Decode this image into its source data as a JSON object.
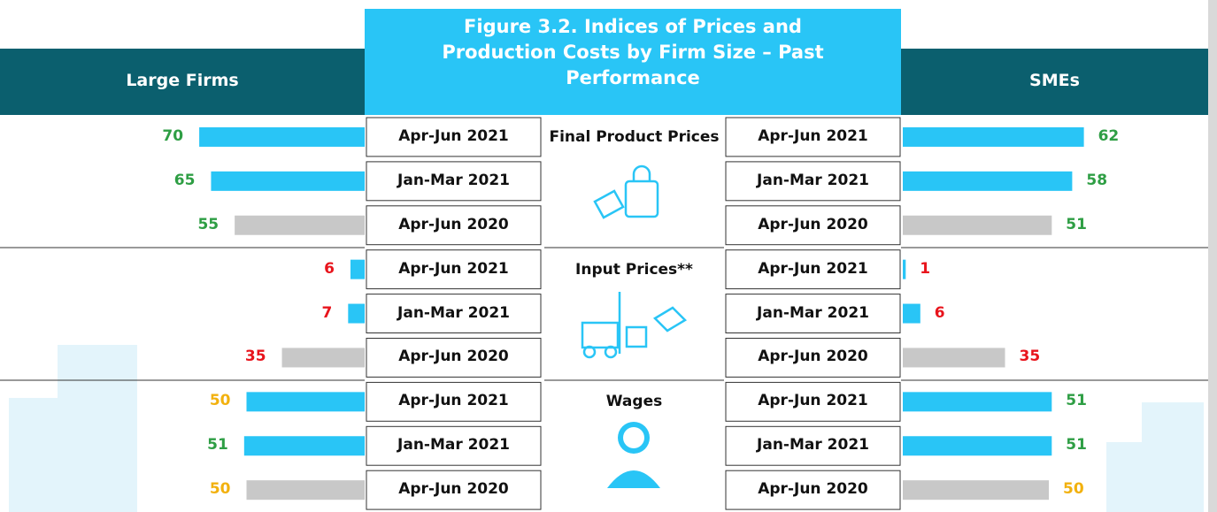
{
  "title": "Figure 3.2. Indices of Prices and Production Costs by Firm Size – Past Performance",
  "left_header": "Large Firms",
  "right_header": "SMEs",
  "periods": [
    "Apr-Jun 2021",
    "Jan-Mar 2021",
    "Apr-Jun 2020"
  ],
  "period_colors": [
    "#29c5f6",
    "#29c5f6",
    "#c8c8c8"
  ],
  "groups": [
    {
      "name": "Final Product Prices",
      "large": [
        70,
        65,
        55
      ],
      "large_colors": [
        "#2e9e44",
        "#2e9e44",
        "#2e9e44"
      ],
      "smes": [
        62,
        58,
        51
      ],
      "smes_colors": [
        "#2e9e44",
        "#2e9e44",
        "#2e9e44"
      ]
    },
    {
      "name": "Input Prices**",
      "large": [
        6,
        7,
        35
      ],
      "large_colors": [
        "#e8141c",
        "#e8141c",
        "#e8141c"
      ],
      "smes": [
        1,
        6,
        35
      ],
      "smes_colors": [
        "#e8141c",
        "#e8141c",
        "#e8141c"
      ]
    },
    {
      "name": "Wages",
      "large": [
        50,
        51,
        50
      ],
      "large_colors": [
        "#f2b10e",
        "#2e9e44",
        "#f2b10e"
      ],
      "smes": [
        51,
        51,
        50
      ],
      "smes_colors": [
        "#2e9e44",
        "#2e9e44",
        "#f2b10e"
      ]
    }
  ]
}
